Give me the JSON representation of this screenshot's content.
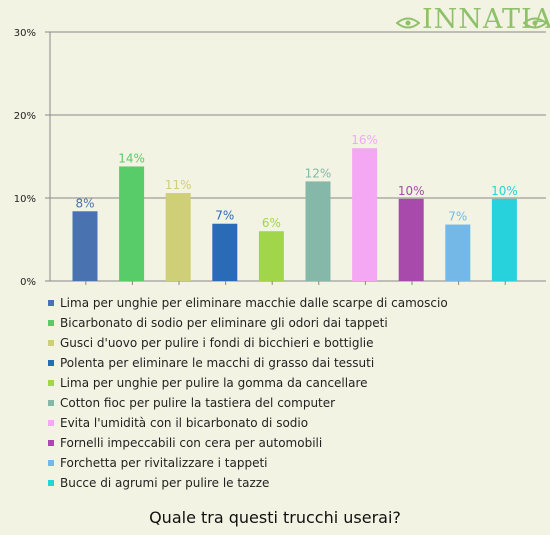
{
  "logo": {
    "text": "INNATIA",
    "color": "#8fc06a"
  },
  "question": "Quale tra questi trucchi userai?",
  "chart_data": {
    "type": "bar",
    "ylim": [
      0,
      30
    ],
    "yticks": [
      "0%",
      "10%",
      "20%",
      "30%"
    ],
    "grid": true,
    "legend_position": "bottom",
    "categories": [
      "Lima per unghie per eliminare macchie dalle scarpe di camoscio",
      "Bicarbonato di sodio per eliminare gli odori dai tappeti",
      "Gusci d'uovo per pulire i fondi di bicchieri e bottiglie",
      "Polenta per eliminare le macchi di grasso dai tessuti",
      "Lima per unghie per pulire la gomma da cancellare",
      "Cotton fioc per pulire la tastiera del computer",
      "Evita l'umidità con il bicarbonato di sodio",
      "Fornelli impeccabili con cera per automobili",
      "Forchetta per rivitalizzare i tappeti",
      "Bucce di agrumi per pulire le tazze"
    ],
    "values": [
      8.4,
      13.8,
      10.6,
      6.9,
      6.0,
      12.0,
      16.0,
      9.9,
      6.8,
      9.9
    ],
    "labels": [
      "8%",
      "14%",
      "11%",
      "7%",
      "6%",
      "12%",
      "16%",
      "10%",
      "7%",
      "10%"
    ],
    "colors": [
      "#4873b0",
      "#58cc68",
      "#cfcf78",
      "#2a6bb8",
      "#a1d64a",
      "#85b8a8",
      "#f4a8f4",
      "#a84aac",
      "#74b8e8",
      "#28d2dc"
    ]
  }
}
